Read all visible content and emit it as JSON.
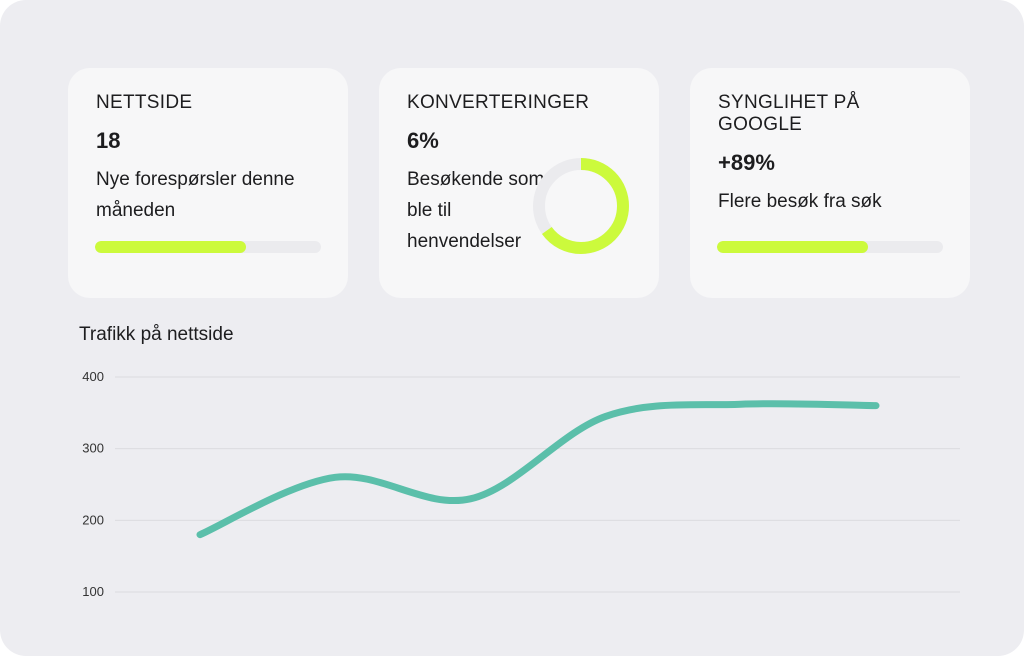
{
  "cards": [
    {
      "title": "NETTSIDE",
      "value": "18",
      "description": "Nye forespørsler denne måneden",
      "progress": 0.67
    },
    {
      "title": "KONVERTERINGER",
      "value": "6%",
      "description": "Besøkende som ble til henvendelser",
      "ring_progress": 0.65
    },
    {
      "title": "SYNGLIHET PÅ GOOGLE",
      "value": "+89%",
      "description": "Flere besøk fra søk",
      "progress": 0.67
    }
  ],
  "colors": {
    "accent": "#ccfa3c",
    "track": "#ebebee",
    "line": "#5bbfaa",
    "background": "#ededf1",
    "card": "#f7f7f8"
  },
  "chart_data": {
    "type": "line",
    "title": "Trafikk på nettside",
    "xlabel": "",
    "ylabel": "",
    "ylim": [
      100,
      400
    ],
    "yticks": [
      "400",
      "300",
      "200",
      "100"
    ],
    "grid": true,
    "series": [
      {
        "values": [
          180,
          260,
          230,
          345,
          362,
          360
        ]
      }
    ]
  }
}
